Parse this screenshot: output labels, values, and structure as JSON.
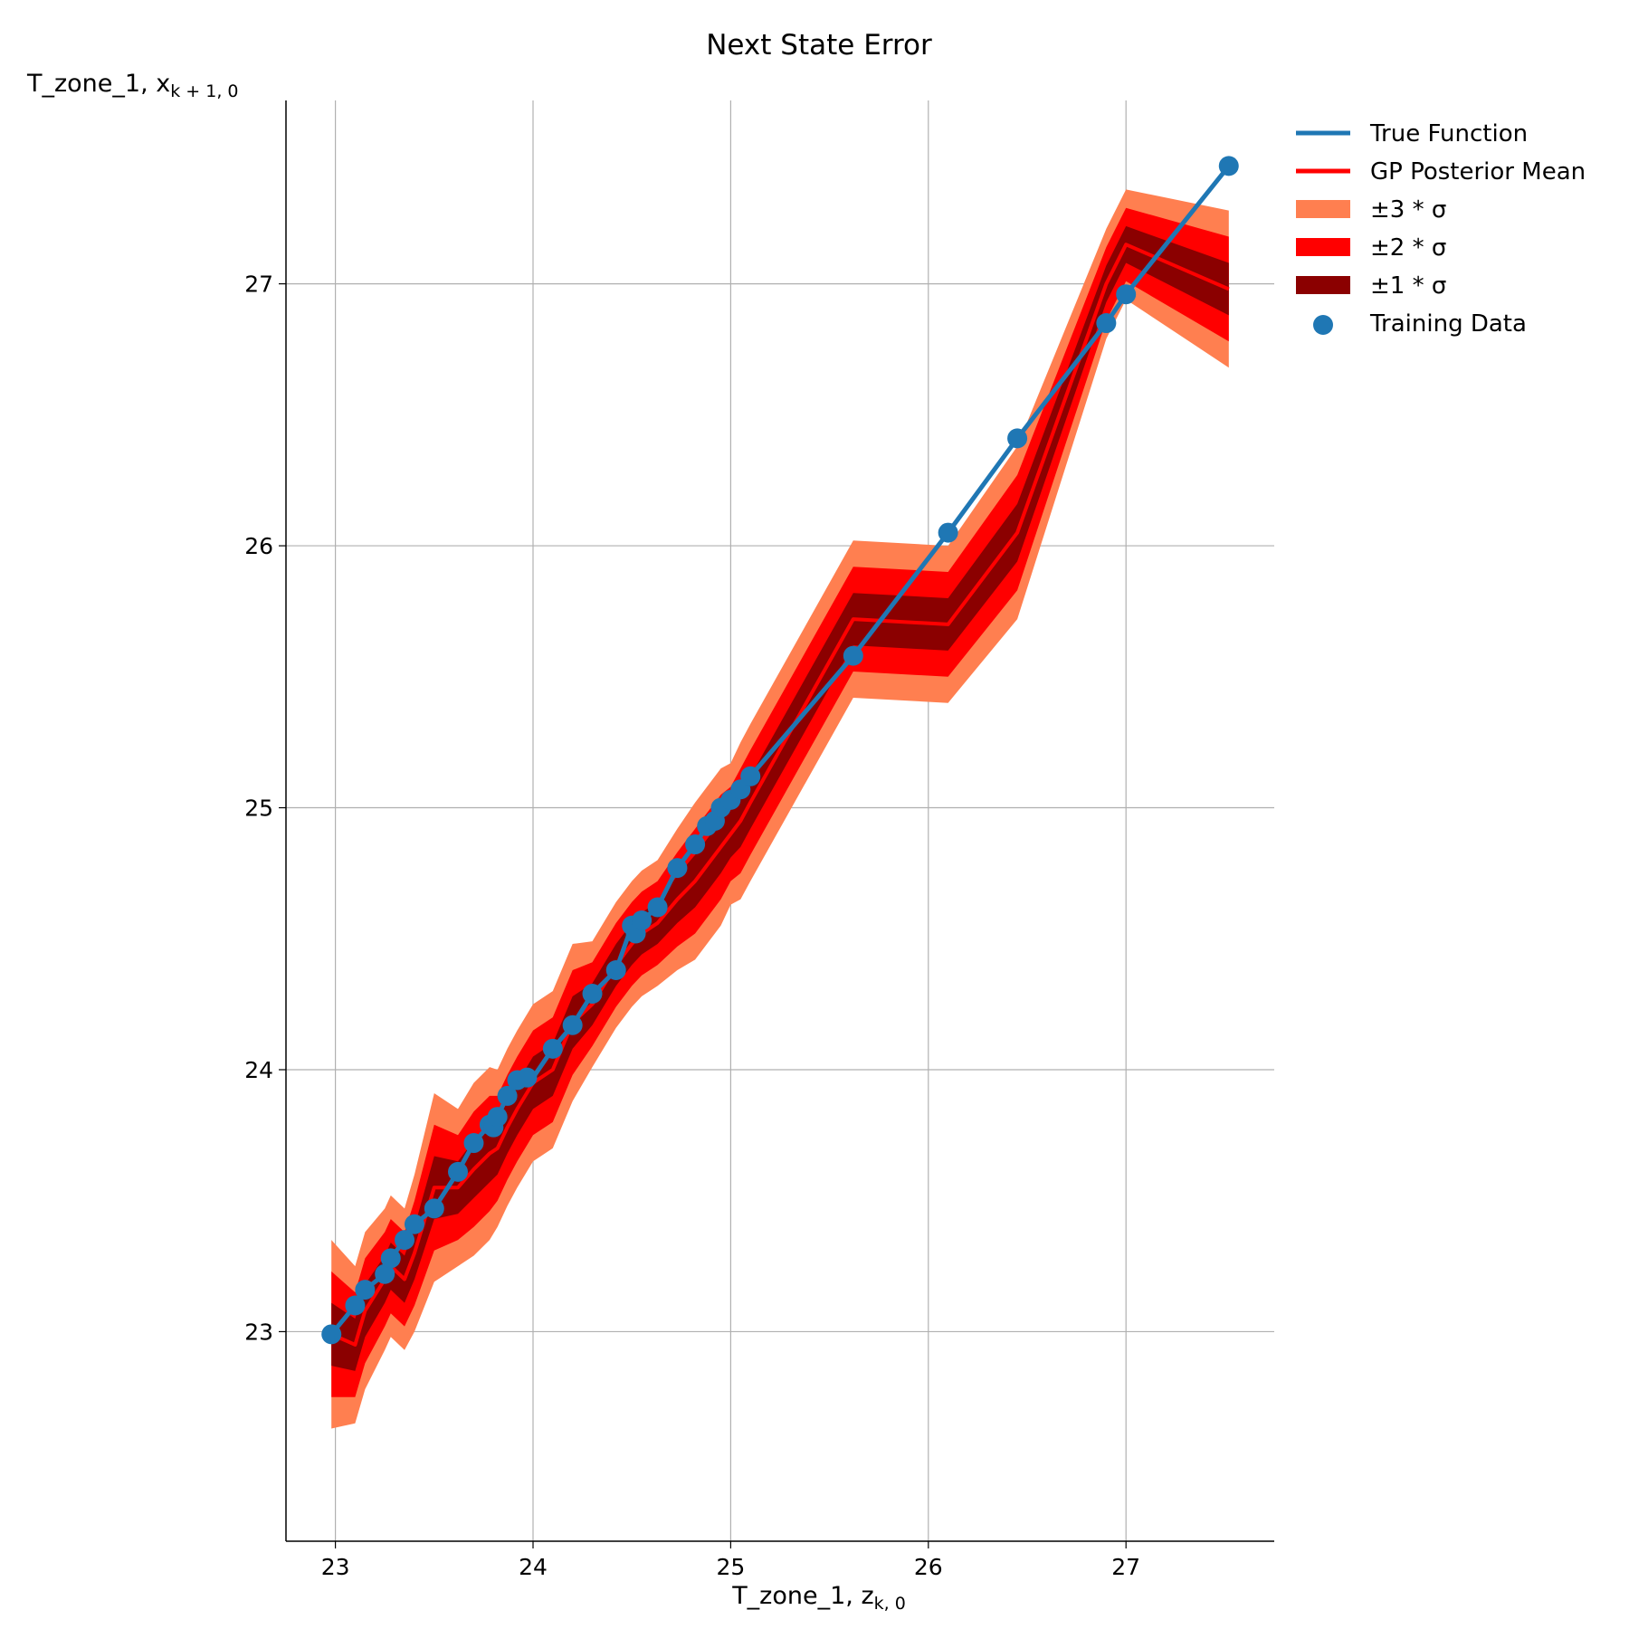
{
  "chart_data": {
    "type": "line",
    "title": "Next State Error",
    "xlabel": "T_zone_1, z",
    "xlabel_sub": "k, 0",
    "ylabel": "T_zone_1, x",
    "ylabel_sub": "k + 1, 0",
    "xlim": [
      22.75,
      27.75
    ],
    "ylim": [
      22.2,
      27.7
    ],
    "xticks": [
      23,
      24,
      25,
      26,
      27
    ],
    "yticks": [
      23,
      24,
      25,
      26,
      27
    ],
    "grid": true,
    "legend_position": "outside-top-right",
    "colors": {
      "true_function": "#1f77b4",
      "gp_mean": "#ff0000",
      "band3": "#ff7f50",
      "band2": "#ff0000",
      "band1": "#8b0000",
      "training": "#1f77b4"
    },
    "legend": [
      {
        "key": "true",
        "label": "True Function",
        "kind": "line"
      },
      {
        "key": "mean",
        "label": "GP Posterior Mean",
        "kind": "line"
      },
      {
        "key": "b3",
        "label": "±3 * σ",
        "kind": "patch"
      },
      {
        "key": "b2",
        "label": "±2 * σ",
        "kind": "patch"
      },
      {
        "key": "b1",
        "label": "±1 * σ",
        "kind": "patch"
      },
      {
        "key": "train",
        "label": "Training Data",
        "kind": "marker"
      }
    ],
    "x": [
      22.98,
      23.1,
      23.15,
      23.25,
      23.28,
      23.35,
      23.4,
      23.5,
      23.62,
      23.7,
      23.78,
      23.82,
      23.87,
      23.92,
      24.0,
      24.1,
      24.2,
      24.3,
      24.42,
      24.5,
      24.55,
      24.63,
      24.73,
      24.82,
      24.88,
      24.95,
      25.0,
      25.05,
      25.1,
      25.62,
      26.1,
      26.45,
      26.9,
      27.0,
      27.52
    ],
    "series": [
      {
        "name": "True Function",
        "values": [
          22.99,
          23.1,
          23.16,
          23.22,
          23.28,
          23.35,
          23.41,
          23.47,
          23.61,
          23.72,
          23.79,
          23.82,
          23.9,
          23.96,
          23.97,
          24.08,
          24.17,
          24.29,
          24.38,
          24.55,
          24.57,
          24.62,
          24.77,
          24.86,
          24.93,
          25.0,
          25.03,
          25.07,
          25.12,
          25.58,
          26.05,
          26.41,
          26.85,
          26.96,
          27.45
        ]
      },
      {
        "name": "GP Posterior Mean",
        "values": [
          22.99,
          22.95,
          23.08,
          23.2,
          23.25,
          23.2,
          23.3,
          23.55,
          23.55,
          23.62,
          23.68,
          23.7,
          23.78,
          23.85,
          23.95,
          24.0,
          24.18,
          24.25,
          24.4,
          24.48,
          24.52,
          24.56,
          24.65,
          24.72,
          24.78,
          24.85,
          24.9,
          24.95,
          25.02,
          25.72,
          25.7,
          26.05,
          27.0,
          27.15,
          26.98
        ]
      }
    ],
    "sigma": [
      0.12,
      0.1,
      0.1,
      0.09,
      0.09,
      0.09,
      0.1,
      0.12,
      0.1,
      0.11,
      0.11,
      0.1,
      0.1,
      0.1,
      0.1,
      0.1,
      0.1,
      0.08,
      0.08,
      0.08,
      0.08,
      0.08,
      0.09,
      0.1,
      0.1,
      0.1,
      0.09,
      0.1,
      0.1,
      0.1,
      0.1,
      0.11,
      0.07,
      0.07,
      0.1
    ],
    "training_x": [
      22.98,
      23.1,
      23.15,
      23.25,
      23.28,
      23.35,
      23.4,
      23.5,
      23.62,
      23.7,
      23.78,
      23.8,
      23.82,
      23.87,
      23.92,
      23.97,
      24.1,
      24.2,
      24.3,
      24.42,
      24.5,
      24.52,
      24.55,
      24.63,
      24.73,
      24.82,
      24.88,
      24.92,
      24.95,
      25.0,
      25.05,
      25.1,
      25.62,
      26.1,
      26.45,
      26.9,
      27.0,
      27.52
    ],
    "training_y": [
      22.99,
      23.1,
      23.16,
      23.22,
      23.28,
      23.35,
      23.41,
      23.47,
      23.61,
      23.72,
      23.79,
      23.78,
      23.82,
      23.9,
      23.96,
      23.97,
      24.08,
      24.17,
      24.29,
      24.38,
      24.55,
      24.52,
      24.57,
      24.62,
      24.77,
      24.86,
      24.93,
      24.95,
      25.0,
      25.03,
      25.07,
      25.12,
      25.58,
      26.05,
      26.41,
      26.85,
      26.96,
      27.45
    ]
  }
}
